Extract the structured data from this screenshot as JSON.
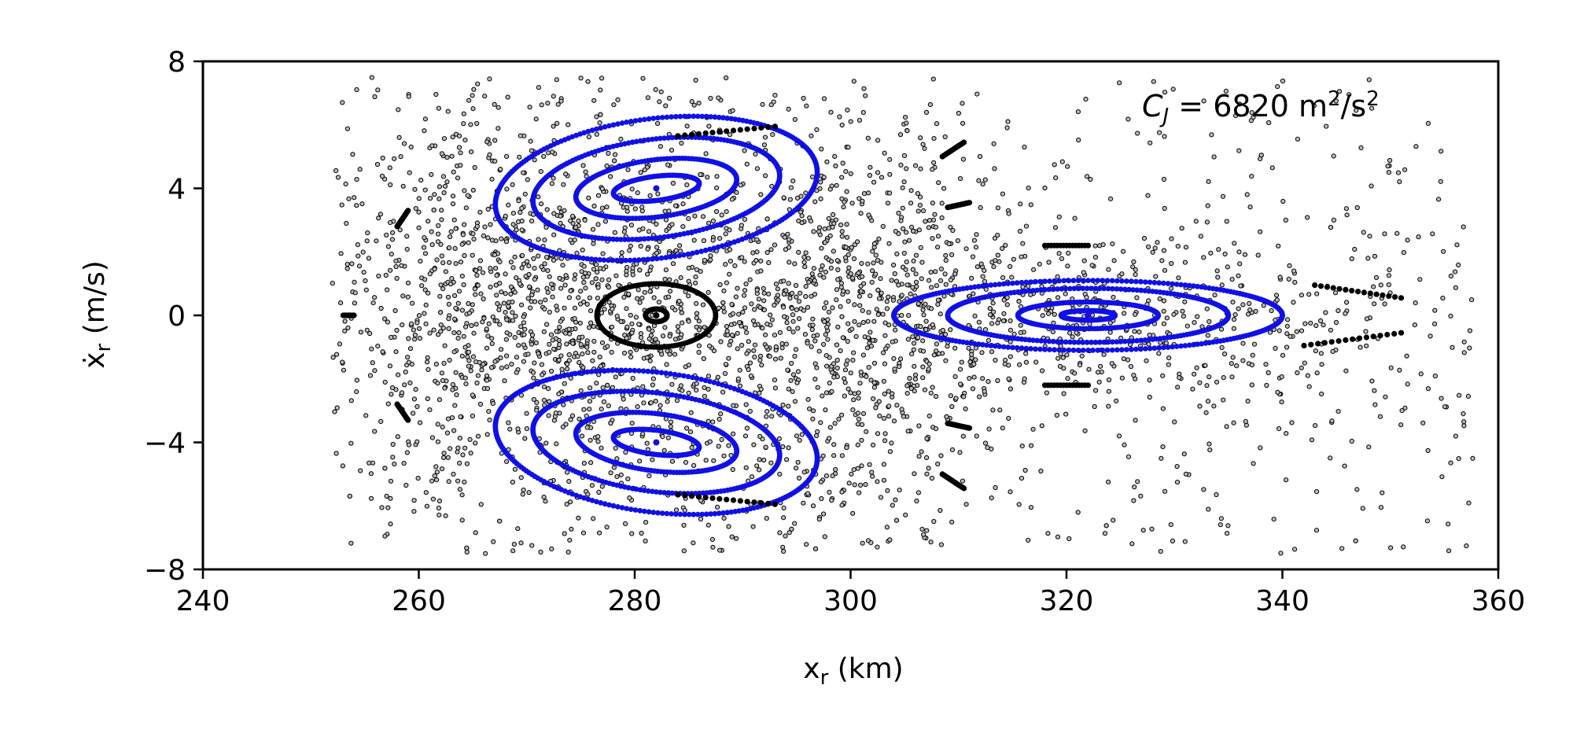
{
  "chart_data": {
    "type": "scatter",
    "title": "",
    "xlabel": "x",
    "xlabel_sub": "r",
    "xlabel_unit": " (km)",
    "ylabel": "ẋ",
    "ylabel_sub": "r",
    "ylabel_unit": " (m/s)",
    "xlim": [
      240,
      360
    ],
    "ylim": [
      -8,
      8
    ],
    "xticks": [
      240,
      260,
      280,
      300,
      320,
      340,
      360
    ],
    "yticks": [
      -8,
      -4,
      0,
      4,
      8
    ],
    "xtick_labels": [
      "240",
      "260",
      "280",
      "300",
      "320",
      "340",
      "360"
    ],
    "ytick_labels": [
      "−8",
      "−4",
      "0",
      "4",
      "8"
    ],
    "grid": false,
    "annotation": {
      "main": "C",
      "sub": "J",
      "rest": " = 6820 m",
      "sup1": "2",
      "mid": "/s",
      "sup2": "2"
    },
    "colors": {
      "regular_orbit": "#1010e6",
      "chaotic": "#000000",
      "central_orbit": "#000000"
    },
    "series": [
      {
        "kind": "chaotic-sea",
        "color": "#000000",
        "x_range": [
          252,
          358
        ],
        "y_range": [
          -7.5,
          7.5
        ],
        "point_count": 3600
      },
      {
        "kind": "regular-island-upper",
        "color": "#1010e6",
        "center": [
          282,
          4.0
        ],
        "orbits": [
          {
            "a": 15.0,
            "b": 2.2,
            "tilt_deg": 7
          },
          {
            "a": 11.5,
            "b": 1.55,
            "tilt_deg": 7
          },
          {
            "a": 7.5,
            "b": 0.9,
            "tilt_deg": 7
          },
          {
            "a": 4.0,
            "b": 0.38,
            "tilt_deg": 7
          }
        ]
      },
      {
        "kind": "regular-island-lower",
        "color": "#1010e6",
        "center": [
          282,
          -4.0
        ],
        "orbits": [
          {
            "a": 15.0,
            "b": 2.2,
            "tilt_deg": -7
          },
          {
            "a": 11.5,
            "b": 1.55,
            "tilt_deg": -7
          },
          {
            "a": 7.5,
            "b": 0.9,
            "tilt_deg": -7
          },
          {
            "a": 4.0,
            "b": 0.38,
            "tilt_deg": -7
          }
        ]
      },
      {
        "kind": "regular-island-right",
        "color": "#1010e6",
        "center": [
          322,
          0.0
        ],
        "orbits": [
          {
            "a": 18.0,
            "b": 1.1,
            "tilt_deg": 0
          },
          {
            "a": 13.0,
            "b": 0.85,
            "tilt_deg": 0
          },
          {
            "a": 6.5,
            "b": 0.42,
            "tilt_deg": 0
          },
          {
            "a": 2.5,
            "b": 0.15,
            "tilt_deg": 0
          }
        ]
      },
      {
        "kind": "central-orbit",
        "color": "#000000",
        "center": [
          282,
          0.0
        ],
        "orbits": [
          {
            "a": 5.5,
            "b": 1.0,
            "tilt_deg": 0
          },
          {
            "a": 1.0,
            "b": 0.2,
            "tilt_deg": 0
          }
        ]
      },
      {
        "kind": "resonance-chain",
        "color": "#000000",
        "segments": [
          {
            "x": [
              284,
              293
            ],
            "y": [
              5.65,
              5.95
            ]
          },
          {
            "x": [
              284,
              293
            ],
            "y": [
              -5.65,
              -5.95
            ]
          },
          {
            "x": [
              318,
              322
            ],
            "y": [
              2.2,
              2.2
            ]
          },
          {
            "x": [
              318,
              322
            ],
            "y": [
              -2.2,
              -2.2
            ]
          },
          {
            "x": [
              308.5,
              310.5
            ],
            "y": [
              5.0,
              5.45
            ]
          },
          {
            "x": [
              308.5,
              310.5
            ],
            "y": [
              -5.0,
              -5.45
            ]
          },
          {
            "x": [
              309,
              311
            ],
            "y": [
              3.4,
              3.55
            ]
          },
          {
            "x": [
              309,
              311
            ],
            "y": [
              -3.4,
              -3.55
            ]
          },
          {
            "x": [
              258,
              259
            ],
            "y": [
              2.8,
              3.3
            ]
          },
          {
            "x": [
              258,
              259
            ],
            "y": [
              -2.8,
              -3.3
            ]
          },
          {
            "x": [
              253,
              254
            ],
            "y": [
              0,
              0
            ]
          },
          {
            "x": [
              343,
              351
            ],
            "y": [
              0.95,
              0.55
            ]
          },
          {
            "x": [
              342,
              351
            ],
            "y": [
              -0.95,
              -0.55
            ]
          }
        ]
      }
    ]
  }
}
